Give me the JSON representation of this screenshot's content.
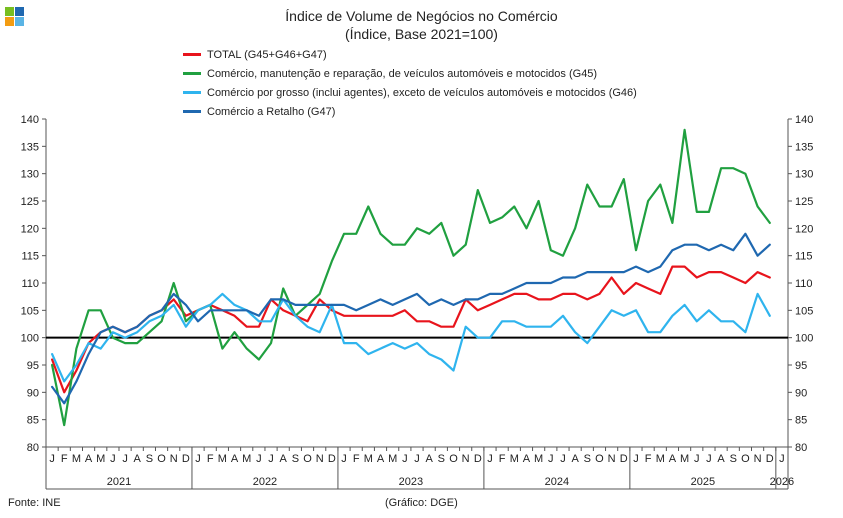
{
  "title": "Índice de Volume de Negócios no Comércio",
  "subtitle": "(Índice, Base 2021=100)",
  "footer": {
    "source": "Fonte: INE",
    "credit": "(Gráfico: DGE)"
  },
  "chart_data": {
    "type": "line",
    "ylim": [
      80,
      140
    ],
    "yticks": [
      80,
      85,
      90,
      95,
      100,
      105,
      110,
      115,
      120,
      125,
      130,
      135,
      140
    ],
    "reference_line": 100,
    "month_labels": [
      "J",
      "F",
      "M",
      "A",
      "M",
      "J",
      "J",
      "A",
      "S",
      "O",
      "N",
      "D"
    ],
    "years": [
      "2021",
      "2022",
      "2023",
      "2024",
      "2025",
      "2026"
    ],
    "series": [
      {
        "name": "TOTAL (G45+G46+G47)",
        "color": "#e8141c",
        "values": [
          96,
          90,
          94,
          99,
          101,
          102,
          101,
          102,
          104,
          105,
          107,
          104,
          105,
          106,
          105,
          104,
          102,
          102,
          107,
          105,
          104,
          103,
          107,
          105,
          104,
          104,
          104,
          104,
          104,
          105,
          103,
          103,
          102,
          102,
          107,
          105,
          106,
          107,
          108,
          108,
          107,
          107,
          108,
          108,
          107,
          108,
          111,
          108,
          110,
          109,
          108,
          113,
          113,
          111,
          112,
          112,
          111,
          110,
          112,
          111
        ]
      },
      {
        "name": "Comércio, manutenção e reparação, de veículos automóveis e motocidos (G45)",
        "color": "#20a040",
        "values": [
          95,
          84,
          98,
          105,
          105,
          100,
          99,
          99,
          101,
          103,
          110,
          103,
          105,
          106,
          98,
          101,
          98,
          96,
          99,
          109,
          104,
          106,
          108,
          114,
          119,
          119,
          124,
          119,
          117,
          117,
          120,
          119,
          121,
          115,
          117,
          127,
          121,
          122,
          124,
          120,
          125,
          116,
          115,
          120,
          128,
          124,
          124,
          129,
          116,
          125,
          128,
          121,
          138,
          123,
          123,
          131,
          131,
          130,
          124,
          121
        ]
      },
      {
        "name": "Comércio por grosso (inclui agentes), exceto de veículos automóveis e motocidos (G46)",
        "color": "#2fb4ee",
        "values": [
          97,
          92,
          95,
          99,
          98,
          101,
          100,
          101,
          103,
          104,
          106,
          102,
          105,
          106,
          108,
          106,
          105,
          103,
          103,
          107,
          104,
          102,
          101,
          106,
          99,
          99,
          97,
          98,
          99,
          98,
          99,
          97,
          96,
          94,
          102,
          100,
          100,
          103,
          103,
          102,
          102,
          102,
          104,
          101,
          99,
          102,
          105,
          104,
          105,
          101,
          101,
          104,
          106,
          103,
          105,
          103,
          103,
          101,
          108,
          104
        ]
      },
      {
        "name": "Comércio a Retalho (G47)",
        "color": "#1f68b0",
        "values": [
          91,
          88,
          92,
          97,
          101,
          102,
          101,
          102,
          104,
          105,
          108,
          106,
          103,
          105,
          105,
          105,
          105,
          104,
          107,
          107,
          106,
          106,
          106,
          106,
          106,
          105,
          106,
          107,
          106,
          107,
          108,
          106,
          107,
          106,
          107,
          107,
          108,
          108,
          109,
          110,
          110,
          110,
          111,
          111,
          112,
          112,
          112,
          112,
          113,
          112,
          113,
          116,
          117,
          117,
          116,
          117,
          116,
          119,
          115,
          117
        ]
      }
    ]
  }
}
